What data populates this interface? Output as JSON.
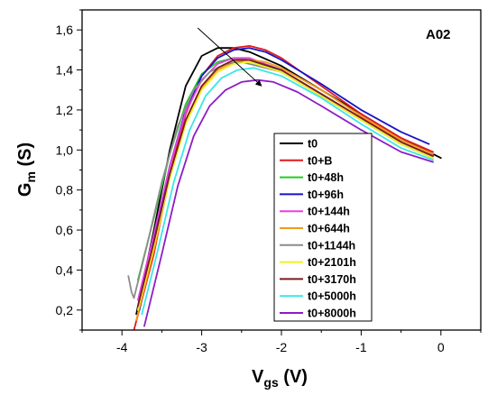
{
  "chart_data": {
    "type": "line",
    "annotation": "A02",
    "xlabel": {
      "main": "V",
      "sub": "gs",
      "unit": " (V)"
    },
    "ylabel": {
      "main": "G",
      "sub": "m",
      "unit": " (S)"
    },
    "xlim": [
      -4.5,
      0.5
    ],
    "ylim": [
      0.1,
      1.7
    ],
    "x_ticks": [
      -4,
      -3,
      -2,
      -1,
      0
    ],
    "x_tick_labels": [
      "-4",
      "-3",
      "-2",
      "-1",
      "0"
    ],
    "y_ticks": [
      0.2,
      0.4,
      0.6,
      0.8,
      1.0,
      1.2,
      1.4,
      1.6
    ],
    "y_tick_labels": [
      "0,2",
      "0,4",
      "0,6",
      "0,8",
      "1,0",
      "1,2",
      "1,4",
      "1,6"
    ],
    "grid": false,
    "legend_position": "lower-right",
    "series": [
      {
        "name": "t0",
        "color": "#000000",
        "points": [
          [
            -3.82,
            0.18
          ],
          [
            -3.6,
            0.6
          ],
          [
            -3.4,
            1.0
          ],
          [
            -3.2,
            1.32
          ],
          [
            -3.0,
            1.47
          ],
          [
            -2.8,
            1.51
          ],
          [
            -2.6,
            1.51
          ],
          [
            -2.4,
            1.49
          ],
          [
            -2.0,
            1.42
          ],
          [
            -1.5,
            1.3
          ],
          [
            -1.0,
            1.18
          ],
          [
            -0.5,
            1.06
          ],
          [
            0.0,
            0.96
          ]
        ]
      },
      {
        "name": "t0+B",
        "color": "#e31a1c",
        "points": [
          [
            -3.85,
            0.1
          ],
          [
            -3.6,
            0.48
          ],
          [
            -3.4,
            0.88
          ],
          [
            -3.2,
            1.18
          ],
          [
            -3.0,
            1.37
          ],
          [
            -2.8,
            1.47
          ],
          [
            -2.6,
            1.51
          ],
          [
            -2.4,
            1.52
          ],
          [
            -2.2,
            1.5
          ],
          [
            -2.0,
            1.46
          ],
          [
            -1.5,
            1.32
          ],
          [
            -1.0,
            1.18
          ],
          [
            -0.5,
            1.06
          ],
          [
            -0.1,
            0.99
          ]
        ]
      },
      {
        "name": "t0+48h",
        "color": "#22cc22",
        "points": [
          [
            -3.8,
            0.35
          ],
          [
            -3.6,
            0.66
          ],
          [
            -3.4,
            0.98
          ],
          [
            -3.2,
            1.23
          ],
          [
            -3.0,
            1.38
          ],
          [
            -2.8,
            1.44
          ],
          [
            -2.6,
            1.46
          ],
          [
            -2.4,
            1.45
          ],
          [
            -2.0,
            1.39
          ],
          [
            -1.5,
            1.27
          ],
          [
            -1.0,
            1.15
          ],
          [
            -0.5,
            1.03
          ],
          [
            -0.1,
            0.96
          ]
        ]
      },
      {
        "name": "t0+96h",
        "color": "#1414c8",
        "points": [
          [
            -3.78,
            0.2
          ],
          [
            -3.6,
            0.55
          ],
          [
            -3.4,
            0.92
          ],
          [
            -3.2,
            1.2
          ],
          [
            -3.0,
            1.37
          ],
          [
            -2.8,
            1.46
          ],
          [
            -2.6,
            1.5
          ],
          [
            -2.4,
            1.51
          ],
          [
            -2.2,
            1.49
          ],
          [
            -2.0,
            1.45
          ],
          [
            -1.5,
            1.33
          ],
          [
            -1.0,
            1.2
          ],
          [
            -0.5,
            1.09
          ],
          [
            -0.15,
            1.03
          ]
        ]
      },
      {
        "name": "t0+144h",
        "color": "#e640e6",
        "points": [
          [
            -3.8,
            0.25
          ],
          [
            -3.6,
            0.58
          ],
          [
            -3.4,
            0.92
          ],
          [
            -3.2,
            1.19
          ],
          [
            -3.0,
            1.35
          ],
          [
            -2.8,
            1.43
          ],
          [
            -2.6,
            1.46
          ],
          [
            -2.4,
            1.46
          ],
          [
            -2.0,
            1.4
          ],
          [
            -1.5,
            1.28
          ],
          [
            -1.0,
            1.16
          ],
          [
            -0.5,
            1.04
          ],
          [
            -0.1,
            0.97
          ]
        ]
      },
      {
        "name": "t0+644h",
        "color": "#f29a1a",
        "points": [
          [
            -3.82,
            0.15
          ],
          [
            -3.6,
            0.5
          ],
          [
            -3.4,
            0.86
          ],
          [
            -3.2,
            1.14
          ],
          [
            -3.0,
            1.31
          ],
          [
            -2.8,
            1.4
          ],
          [
            -2.6,
            1.44
          ],
          [
            -2.4,
            1.45
          ],
          [
            -2.2,
            1.44
          ],
          [
            -2.0,
            1.41
          ],
          [
            -1.5,
            1.3
          ],
          [
            -1.0,
            1.17
          ],
          [
            -0.5,
            1.05
          ],
          [
            -0.1,
            0.98
          ]
        ]
      },
      {
        "name": "t0+1144h",
        "color": "#8c8c8c",
        "points": [
          [
            -3.92,
            0.37
          ],
          [
            -3.88,
            0.29
          ],
          [
            -3.85,
            0.26
          ],
          [
            -3.7,
            0.5
          ],
          [
            -3.5,
            0.84
          ],
          [
            -3.3,
            1.12
          ],
          [
            -3.1,
            1.3
          ],
          [
            -2.9,
            1.39
          ],
          [
            -2.7,
            1.43
          ],
          [
            -2.5,
            1.44
          ],
          [
            -2.0,
            1.39
          ],
          [
            -1.5,
            1.27
          ],
          [
            -1.0,
            1.15
          ],
          [
            -0.5,
            1.03
          ],
          [
            -0.1,
            0.96
          ]
        ]
      },
      {
        "name": "t0+2101h",
        "color": "#f0f028",
        "points": [
          [
            -3.8,
            0.2
          ],
          [
            -3.6,
            0.52
          ],
          [
            -3.4,
            0.86
          ],
          [
            -3.2,
            1.13
          ],
          [
            -3.0,
            1.3
          ],
          [
            -2.8,
            1.39
          ],
          [
            -2.6,
            1.43
          ],
          [
            -2.4,
            1.44
          ],
          [
            -2.0,
            1.39
          ],
          [
            -1.5,
            1.27
          ],
          [
            -1.0,
            1.15
          ],
          [
            -0.5,
            1.03
          ],
          [
            -0.1,
            0.96
          ]
        ]
      },
      {
        "name": "t0+3170h",
        "color": "#7a1c1c",
        "points": [
          [
            -3.8,
            0.22
          ],
          [
            -3.6,
            0.54
          ],
          [
            -3.4,
            0.88
          ],
          [
            -3.2,
            1.15
          ],
          [
            -3.0,
            1.32
          ],
          [
            -2.8,
            1.41
          ],
          [
            -2.6,
            1.45
          ],
          [
            -2.4,
            1.45
          ],
          [
            -2.0,
            1.4
          ],
          [
            -1.5,
            1.28
          ],
          [
            -1.0,
            1.16
          ],
          [
            -0.5,
            1.04
          ],
          [
            -0.1,
            0.97
          ]
        ]
      },
      {
        "name": "t0+5000h",
        "color": "#3ce6e6",
        "points": [
          [
            -3.75,
            0.18
          ],
          [
            -3.55,
            0.5
          ],
          [
            -3.35,
            0.84
          ],
          [
            -3.15,
            1.1
          ],
          [
            -2.95,
            1.27
          ],
          [
            -2.75,
            1.36
          ],
          [
            -2.55,
            1.4
          ],
          [
            -2.35,
            1.41
          ],
          [
            -2.0,
            1.37
          ],
          [
            -1.5,
            1.26
          ],
          [
            -1.0,
            1.13
          ],
          [
            -0.5,
            1.01
          ],
          [
            -0.1,
            0.95
          ]
        ]
      },
      {
        "name": "t0+8000h",
        "color": "#8c1cc8",
        "points": [
          [
            -3.72,
            0.12
          ],
          [
            -3.5,
            0.48
          ],
          [
            -3.3,
            0.82
          ],
          [
            -3.1,
            1.07
          ],
          [
            -2.9,
            1.22
          ],
          [
            -2.7,
            1.3
          ],
          [
            -2.5,
            1.34
          ],
          [
            -2.3,
            1.35
          ],
          [
            -2.1,
            1.34
          ],
          [
            -1.8,
            1.29
          ],
          [
            -1.5,
            1.22
          ],
          [
            -1.0,
            1.1
          ],
          [
            -0.5,
            0.99
          ],
          [
            -0.1,
            0.94
          ]
        ]
      }
    ],
    "arrow": {
      "from": [
        -3.05,
        1.61
      ],
      "to": [
        -2.25,
        1.32
      ]
    }
  }
}
